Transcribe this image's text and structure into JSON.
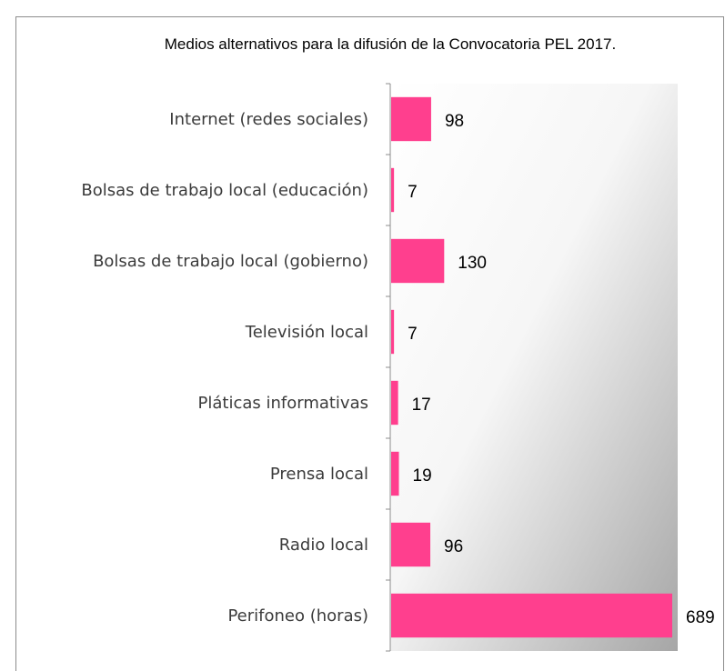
{
  "chart_data": {
    "type": "bar",
    "orientation": "horizontal",
    "title": "Medios alternativos para la difusión de la Convocatoria PEL 2017.",
    "categories": [
      "Internet (redes sociales)",
      "Bolsas de trabajo local (educación)",
      "Bolsas de trabajo local (gobierno)",
      "Televisión local",
      "Pláticas informativas",
      "Prensa local",
      "Radio local",
      "Perifoneo (horas)"
    ],
    "values": [
      98,
      7,
      130,
      7,
      17,
      19,
      96,
      689
    ],
    "data_labels": [
      "98",
      "7",
      "130",
      "7",
      "17",
      "19",
      "96",
      "689"
    ],
    "xlabel": "",
    "ylabel": "",
    "xlim": [
      0,
      689
    ],
    "grid": false,
    "legend": "none",
    "bar_color": "#ff3f8e",
    "background_gradient": [
      "#ffffff",
      "#a6a6a6"
    ]
  }
}
